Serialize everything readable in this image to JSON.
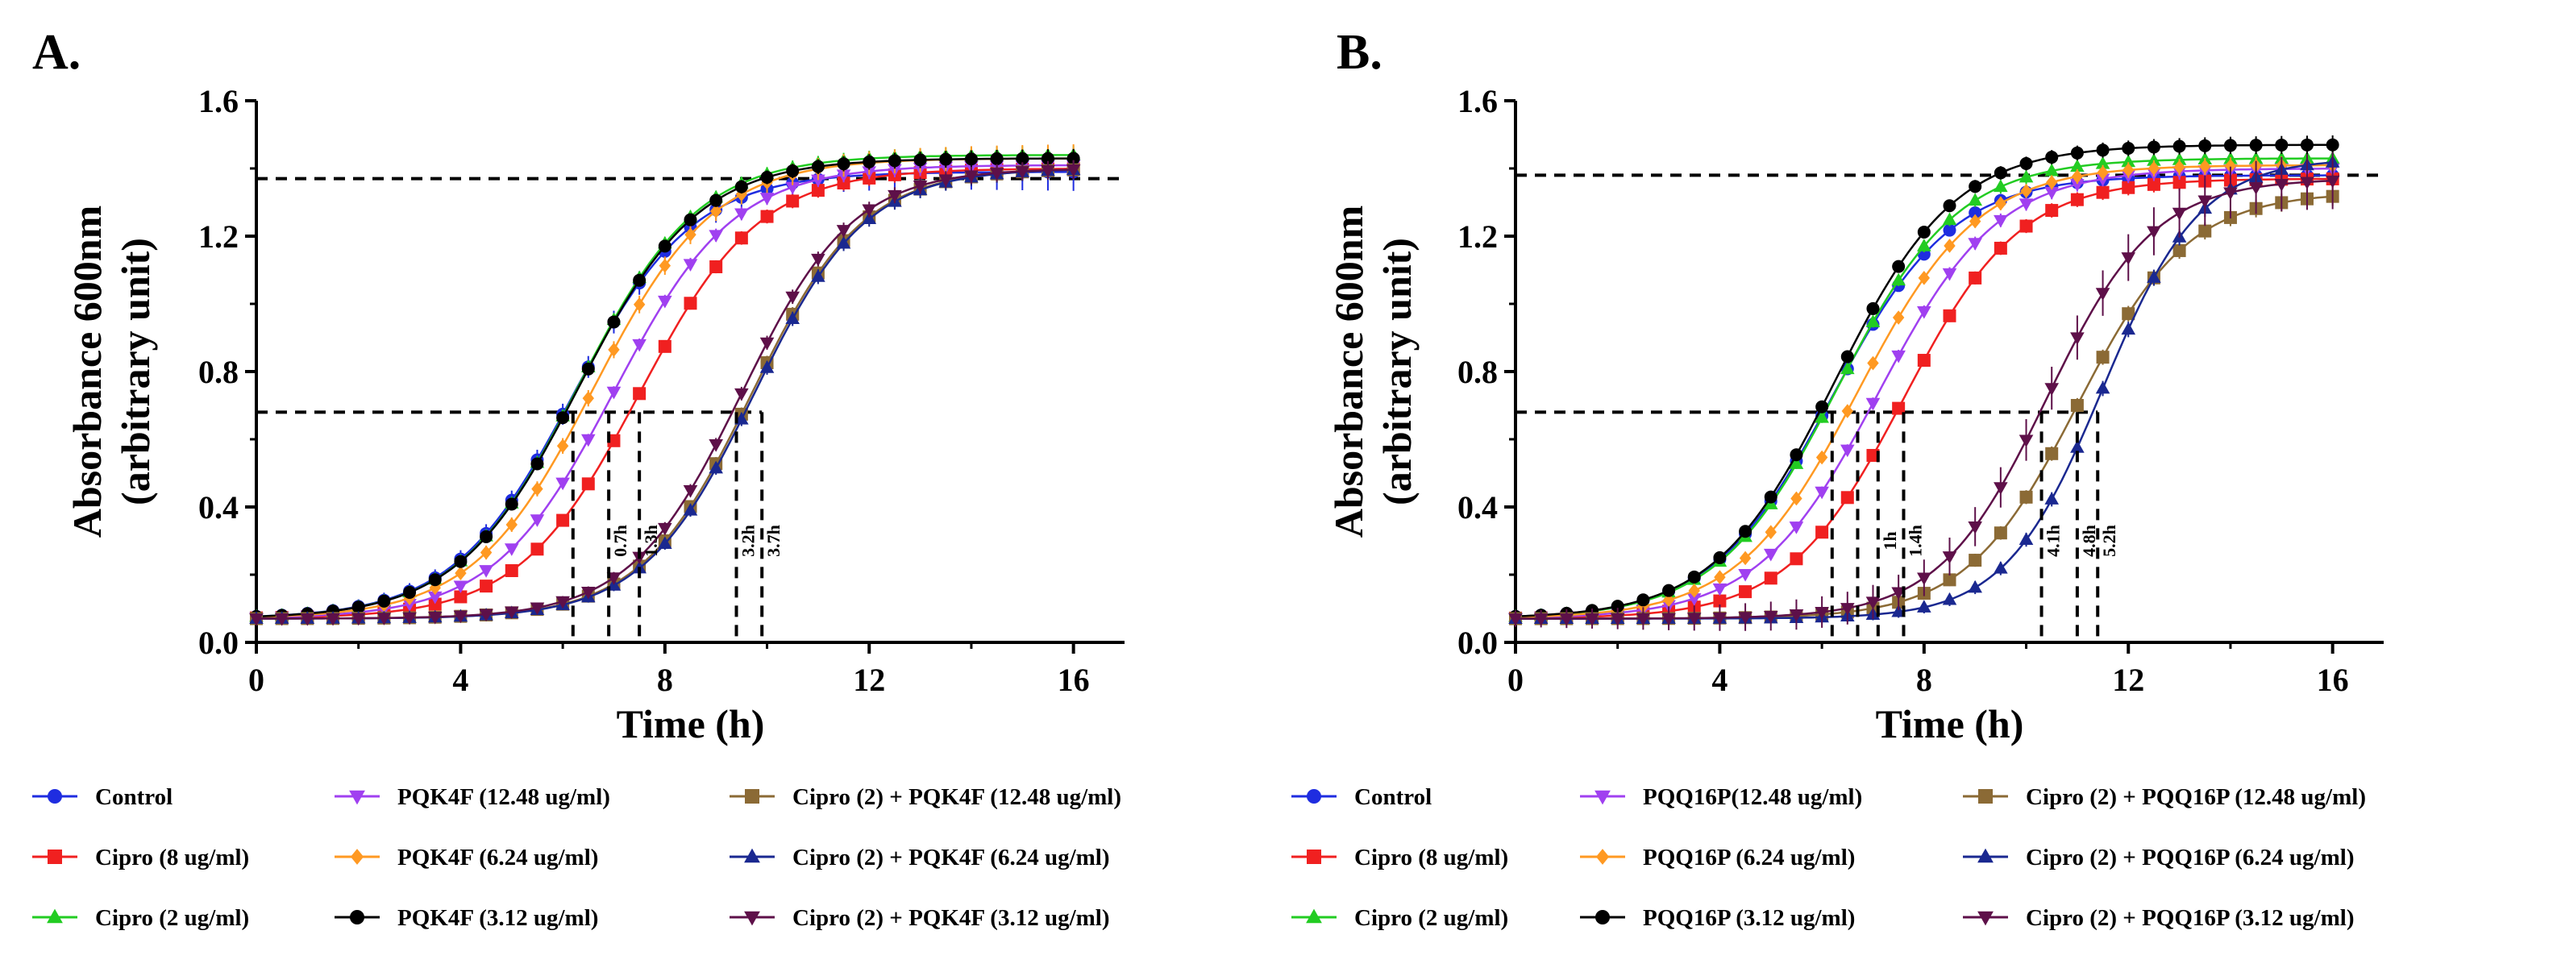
{
  "chart_data": [
    {
      "type": "line",
      "panel_label": "A.",
      "xlabel": "Time (h)",
      "ylabel_line1": "Absorbance 600nm",
      "ylabel_line2": "(arbitrary unit)",
      "xlim": [
        0,
        17
      ],
      "ylim": [
        0,
        1.6
      ],
      "xticks": [
        0,
        4,
        8,
        12,
        16
      ],
      "xtick_labels": [
        "0",
        "4",
        "8",
        "12",
        "16"
      ],
      "yticks": [
        0,
        0.4,
        0.8,
        1.2,
        1.6
      ],
      "ytick_labels": [
        "0.0",
        "0.4",
        "0.8",
        "1.2",
        "1.6"
      ],
      "grid": false,
      "reference_lines": {
        "upper_y": 1.37,
        "half_y": 0.68
      },
      "lag_markers": [
        {
          "x": 6.2,
          "label": ""
        },
        {
          "x": 6.9,
          "label": "0.7h"
        },
        {
          "x": 7.5,
          "label": "1.3h"
        },
        {
          "x": 9.4,
          "label": "3.2h"
        },
        {
          "x": 9.9,
          "label": "3.7h"
        }
      ],
      "series": [
        {
          "name": "Control",
          "color": "#1f2de0",
          "marker": "circle",
          "params": [
            0.07,
            1.39,
            6.2,
            0.85
          ],
          "error": 0.04
        },
        {
          "name": "Cipro (8 ug/ml)",
          "color": "#f02020",
          "marker": "square",
          "params": [
            0.07,
            1.4,
            7.5,
            0.85
          ],
          "error": 0.02
        },
        {
          "name": "Cipro (2 ug/ml)",
          "color": "#22cc22",
          "marker": "triangle-up",
          "params": [
            0.07,
            1.44,
            6.3,
            0.85
          ],
          "error": 0.02
        },
        {
          "name": "PQK4F (12.48 ug/ml)",
          "color": "#a040f0",
          "marker": "triangle-down",
          "params": [
            0.07,
            1.41,
            7.0,
            0.85
          ],
          "error": 0.02
        },
        {
          "name": "PQK4F (6.24 ug/ml)",
          "color": "#ff9922",
          "marker": "diamond",
          "params": [
            0.07,
            1.43,
            6.6,
            0.85
          ],
          "error": 0.03
        },
        {
          "name": "PQK4F (3.12 ug/ml)",
          "color": "#000000",
          "marker": "circle",
          "params": [
            0.07,
            1.43,
            6.3,
            0.85
          ],
          "error": 0.02
        },
        {
          "name": "Cipro (2) + PQK4F (12.48 ug/ml)",
          "color": "#8b6a35",
          "marker": "square",
          "params": [
            0.07,
            1.4,
            9.7,
            0.92
          ],
          "error": 0.02
        },
        {
          "name": "Cipro (2) + PQK4F (6.24 ug/ml)",
          "color": "#1a2890",
          "marker": "triangle-up",
          "params": [
            0.07,
            1.4,
            9.75,
            0.92
          ],
          "error": 0.02
        },
        {
          "name": "Cipro (2) + PQK4F (3.12 ug/ml)",
          "color": "#5e1049",
          "marker": "triangle-down",
          "params": [
            0.07,
            1.4,
            9.5,
            0.92
          ],
          "error": 0.02
        }
      ]
    },
    {
      "type": "line",
      "panel_label": "B.",
      "xlabel": "Time (h)",
      "ylabel_line1": "Absorbance 600nm",
      "ylabel_line2": "(arbitrary unit)",
      "xlim": [
        0,
        17
      ],
      "ylim": [
        0,
        1.6
      ],
      "xticks": [
        0,
        4,
        8,
        12,
        16
      ],
      "xtick_labels": [
        "0",
        "4",
        "8",
        "12",
        "16"
      ],
      "yticks": [
        0,
        0.4,
        0.8,
        1.2,
        1.6
      ],
      "ytick_labels": [
        "0.0",
        "0.4",
        "0.8",
        "1.2",
        "1.6"
      ],
      "grid": false,
      "reference_lines": {
        "upper_y": 1.38,
        "half_y": 0.68
      },
      "lag_markers": [
        {
          "x": 6.2,
          "label": ""
        },
        {
          "x": 6.7,
          "label": ""
        },
        {
          "x": 7.1,
          "label": "1h"
        },
        {
          "x": 7.6,
          "label": "1.4h"
        },
        {
          "x": 10.3,
          "label": "4.1h"
        },
        {
          "x": 11.0,
          "label": "4.8h"
        },
        {
          "x": 11.4,
          "label": "5.2h"
        }
      ],
      "series": [
        {
          "name": "Control",
          "color": "#1f2de0",
          "marker": "circle",
          "params": [
            0.07,
            1.38,
            6.2,
            0.85
          ],
          "error": 0.02
        },
        {
          "name": "Cipro (8 ug/ml)",
          "color": "#f02020",
          "marker": "square",
          "params": [
            0.07,
            1.37,
            7.6,
            0.88
          ],
          "error": 0.02
        },
        {
          "name": "Cipro (2 ug/ml)",
          "color": "#22cc22",
          "marker": "triangle-up",
          "params": [
            0.07,
            1.43,
            6.3,
            0.85
          ],
          "error": 0.02
        },
        {
          "name": "PQQ16P(12.48 ug/ml)",
          "color": "#a040f0",
          "marker": "triangle-down",
          "params": [
            0.07,
            1.4,
            7.1,
            0.85
          ],
          "error": 0.02
        },
        {
          "name": "PQQ16P (6.24 ug/ml)",
          "color": "#ff9922",
          "marker": "diamond",
          "params": [
            0.07,
            1.41,
            6.7,
            0.85
          ],
          "error": 0.02
        },
        {
          "name": "PQQ16P (3.12 ug/ml)",
          "color": "#000000",
          "marker": "circle",
          "params": [
            0.07,
            1.47,
            6.25,
            0.85
          ],
          "error": 0.02
        },
        {
          "name": "Cipro (2) + PQQ16P (12.48 ug/ml)",
          "color": "#8b6a35",
          "marker": "square",
          "params": [
            0.07,
            1.33,
            11.0,
            0.92
          ],
          "error": 0.02
        },
        {
          "name": "Cipro (2) + PQQ16P (6.24 ug/ml)",
          "color": "#1a2890",
          "marker": "triangle-up",
          "params": [
            0.07,
            1.43,
            11.5,
            1.05
          ],
          "error": 0.02
        },
        {
          "name": "Cipro (2) + PQQ16P (3.12 ug/ml)",
          "color": "#5e1049",
          "marker": "triangle-down",
          "params": [
            0.07,
            1.37,
            10.4,
            0.95
          ],
          "error": 0.06
        }
      ]
    }
  ]
}
